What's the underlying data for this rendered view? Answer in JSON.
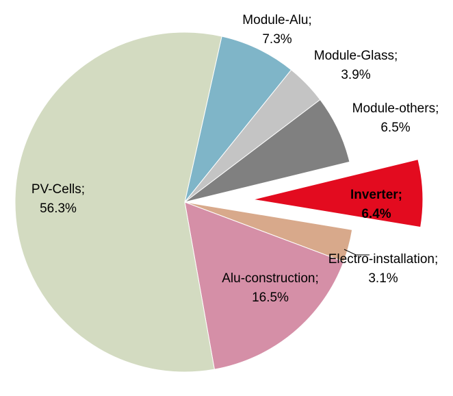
{
  "chart_data": {
    "type": "pie",
    "categories": [
      "Module-Alu;",
      "Module-Glass;",
      "Module-others;",
      "Inverter;",
      "Electro-installation;",
      "Alu-construction;",
      "PV-Cells;"
    ],
    "values": [
      7.3,
      3.9,
      6.5,
      6.4,
      3.1,
      16.5,
      56.3
    ],
    "value_labels": [
      "7.3%",
      "3.9%",
      "6.5%",
      "6.4%",
      "3.1%",
      "16.5%",
      "56.3%"
    ],
    "colors": [
      "#7fb5c8",
      "#c4c4c4",
      "#808080",
      "#e30b1f",
      "#d8a98b",
      "#d58fa7",
      "#d3dbc1"
    ],
    "exploded": [
      3
    ]
  }
}
